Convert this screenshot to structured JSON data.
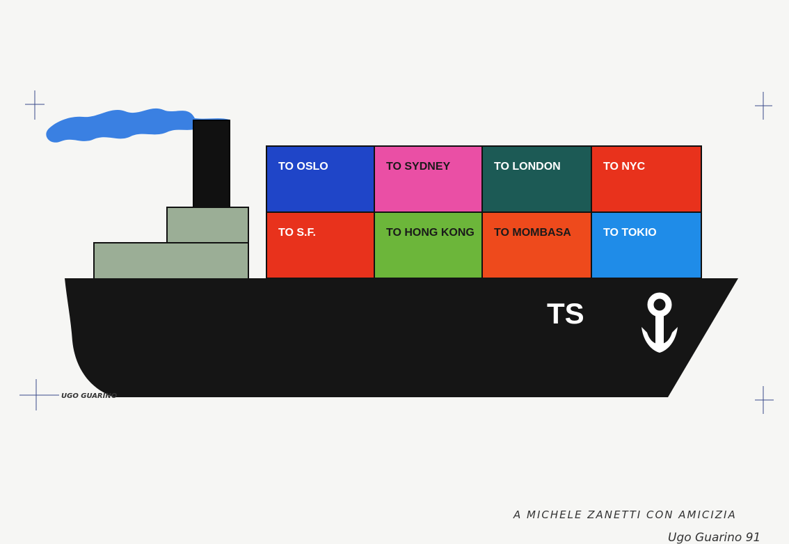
{
  "ship": {
    "hull_mark": "TS",
    "hull_color": "#151515",
    "superstructure_color": "#9bae96",
    "funnel_color": "#111111",
    "smoke_color": "#3a80e2",
    "anchor_icon": "anchor-icon"
  },
  "containers": [
    {
      "label": "TO OSLO",
      "color": "#1f45c8"
    },
    {
      "label": "TO SYDNEY",
      "color": "#ea4fa5"
    },
    {
      "label": "TO LONDON",
      "color": "#1c5a55"
    },
    {
      "label": "TO NYC",
      "color": "#e8321c"
    },
    {
      "label": "TO S.F.",
      "color": "#e8321c"
    },
    {
      "label": "TO HONG KONG",
      "color": "#6cb63a"
    },
    {
      "label": "TO MOMBASA",
      "color": "#ee4a1c"
    },
    {
      "label": "TO TOKIO",
      "color": "#1f8ce8"
    }
  ],
  "signature_printed": "UGO GUARINO",
  "dedication": "A MICHELE ZANETTI CON AMICIZIA",
  "signature_handwritten": "Ugo Guarino 91"
}
